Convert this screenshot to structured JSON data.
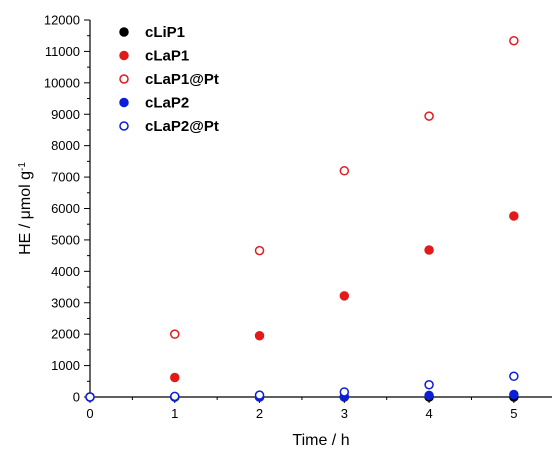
{
  "chart_data": {
    "type": "scatter",
    "xlabel": "Time / h",
    "ylabel": "HE / μmol g",
    "ylabel_superscript": "-1",
    "xlim": [
      0,
      5.45
    ],
    "ylim": [
      0,
      12000
    ],
    "x_ticks": [
      0,
      1,
      2,
      3,
      4,
      5
    ],
    "y_ticks": [
      0,
      1000,
      2000,
      3000,
      4000,
      5000,
      6000,
      7000,
      8000,
      9000,
      10000,
      11000,
      12000
    ],
    "grid": false,
    "legend_position": "top-left",
    "series": [
      {
        "name": "cLiP1",
        "color": "#000000",
        "marker": "filled-circle",
        "x": [
          0,
          1,
          2,
          3,
          4,
          5
        ],
        "y": [
          0,
          0,
          0,
          0,
          0,
          0
        ]
      },
      {
        "name": "cLaP1",
        "color": "#e31a1c",
        "marker": "filled-circle",
        "x": [
          0,
          1,
          2,
          3,
          4,
          5
        ],
        "y": [
          0,
          620,
          1950,
          3220,
          4680,
          5760
        ]
      },
      {
        "name": "cLaP1@Pt",
        "color": "#e31a1c",
        "marker": "open-circle",
        "x": [
          0,
          1,
          2,
          3,
          4,
          5
        ],
        "y": [
          0,
          2000,
          4660,
          7200,
          8940,
          11340
        ]
      },
      {
        "name": "cLaP2",
        "color": "#0a1fd6",
        "marker": "filled-circle",
        "x": [
          0,
          1,
          2,
          3,
          4,
          5
        ],
        "y": [
          0,
          0,
          0,
          10,
          50,
          80
        ]
      },
      {
        "name": "cLaP2@Pt",
        "color": "#0a1fd6",
        "marker": "open-circle",
        "x": [
          0,
          1,
          2,
          3,
          4,
          5
        ],
        "y": [
          0,
          20,
          60,
          160,
          390,
          660
        ]
      }
    ]
  }
}
